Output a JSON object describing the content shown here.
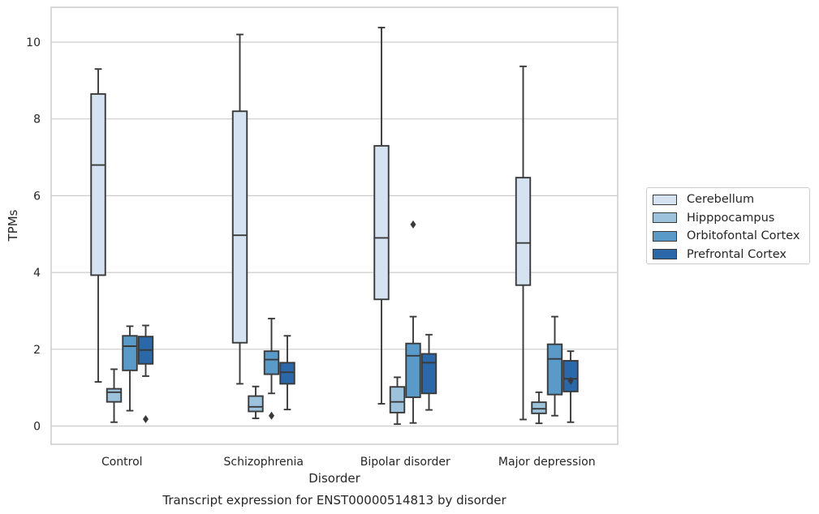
{
  "chart_data": {
    "type": "box",
    "xlabel": "Disorder",
    "ylabel": "TPMs",
    "caption": "Transcript expression for ENST00000514813 by disorder",
    "ylim": [
      -0.45,
      10.9
    ],
    "yticks": [
      0,
      2,
      4,
      6,
      8,
      10
    ],
    "grid": true,
    "legend_position": "right, outside plot",
    "categories": [
      "Control",
      "Schizophrenia",
      "Bipolar disorder",
      "Major depression"
    ],
    "series": [
      {
        "name": "Cerebellum",
        "color": "#d4e2f1",
        "boxes": [
          {
            "whisker_low": 1.15,
            "q1": 3.93,
            "median": 6.8,
            "q3": 8.65,
            "whisker_high": 9.3,
            "outliers": []
          },
          {
            "whisker_low": 1.1,
            "q1": 2.17,
            "median": 4.97,
            "q3": 8.2,
            "whisker_high": 10.2,
            "outliers": []
          },
          {
            "whisker_low": 0.58,
            "q1": 3.3,
            "median": 4.9,
            "q3": 7.3,
            "whisker_high": 10.38,
            "outliers": []
          },
          {
            "whisker_low": 0.17,
            "q1": 3.67,
            "median": 4.77,
            "q3": 6.47,
            "whisker_high": 9.37,
            "outliers": []
          }
        ]
      },
      {
        "name": "Hipppocampus",
        "color": "#9dc2dc",
        "boxes": [
          {
            "whisker_low": 0.1,
            "q1": 0.63,
            "median": 0.88,
            "q3": 0.97,
            "whisker_high": 1.48,
            "outliers": []
          },
          {
            "whisker_low": 0.2,
            "q1": 0.38,
            "median": 0.5,
            "q3": 0.78,
            "whisker_high": 1.03,
            "outliers": []
          },
          {
            "whisker_low": 0.05,
            "q1": 0.35,
            "median": 0.63,
            "q3": 1.02,
            "whisker_high": 1.27,
            "outliers": []
          },
          {
            "whisker_low": 0.07,
            "q1": 0.33,
            "median": 0.45,
            "q3": 0.62,
            "whisker_high": 0.88,
            "outliers": []
          }
        ]
      },
      {
        "name": "Orbitofontal Cortex",
        "color": "#5a9ac8",
        "boxes": [
          {
            "whisker_low": 0.4,
            "q1": 1.45,
            "median": 2.08,
            "q3": 2.35,
            "whisker_high": 2.6,
            "outliers": []
          },
          {
            "whisker_low": 0.85,
            "q1": 1.35,
            "median": 1.73,
            "q3": 1.95,
            "whisker_high": 2.8,
            "outliers": [
              0.27
            ]
          },
          {
            "whisker_low": 0.08,
            "q1": 0.75,
            "median": 1.83,
            "q3": 2.15,
            "whisker_high": 2.85,
            "outliers": [
              5.25
            ]
          },
          {
            "whisker_low": 0.27,
            "q1": 0.82,
            "median": 1.75,
            "q3": 2.13,
            "whisker_high": 2.85,
            "outliers": []
          }
        ]
      },
      {
        "name": "Prefrontal Cortex",
        "color": "#2a68aa",
        "boxes": [
          {
            "whisker_low": 1.3,
            "q1": 1.62,
            "median": 1.98,
            "q3": 2.33,
            "whisker_high": 2.62,
            "outliers": [
              0.18
            ]
          },
          {
            "whisker_low": 0.43,
            "q1": 1.1,
            "median": 1.4,
            "q3": 1.65,
            "whisker_high": 2.35,
            "outliers": []
          },
          {
            "whisker_low": 0.42,
            "q1": 0.85,
            "median": 1.65,
            "q3": 1.88,
            "whisker_high": 2.38,
            "outliers": []
          },
          {
            "whisker_low": 0.1,
            "q1": 0.9,
            "median": 1.23,
            "q3": 1.7,
            "whisker_high": 1.95,
            "outliers": [
              1.18
            ]
          }
        ]
      }
    ]
  }
}
